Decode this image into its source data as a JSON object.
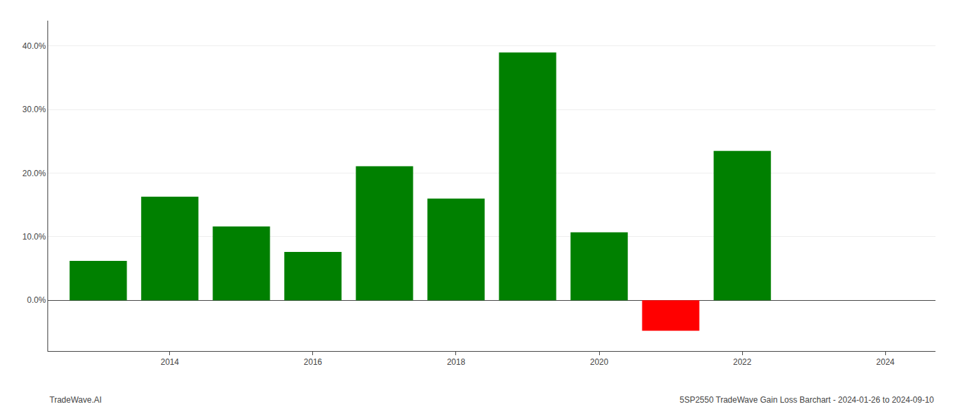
{
  "chart_data": {
    "type": "bar",
    "x": [
      2013,
      2014,
      2015,
      2016,
      2017,
      2018,
      2019,
      2020,
      2021,
      2022,
      2023
    ],
    "values": [
      0.062,
      0.163,
      0.116,
      0.076,
      0.211,
      0.16,
      0.39,
      0.107,
      -0.048,
      0.235,
      0.0
    ],
    "colors": [
      "#008000",
      "#008000",
      "#008000",
      "#008000",
      "#008000",
      "#008000",
      "#008000",
      "#008000",
      "#ff0000",
      "#008000",
      "#008000"
    ],
    "xlim": [
      2012.3,
      2024.7
    ],
    "xticks": [
      2014,
      2016,
      2018,
      2020,
      2022,
      2024
    ],
    "ylim": [
      -0.08,
      0.44
    ],
    "yticks": [
      {
        "value": 0.0,
        "label": "0.0%"
      },
      {
        "value": 0.1,
        "label": "10.0%"
      },
      {
        "value": 0.2,
        "label": "20.0%"
      },
      {
        "value": 0.3,
        "label": "30.0%"
      },
      {
        "value": 0.4,
        "label": "40.0%"
      }
    ],
    "grid": "y",
    "annotations": [
      {
        "text": "TradeWave.AI"
      },
      {
        "text": "5SP2550 TradeWave Gain Loss Barchart - 2024-01-26 to 2024-09-10"
      }
    ]
  }
}
